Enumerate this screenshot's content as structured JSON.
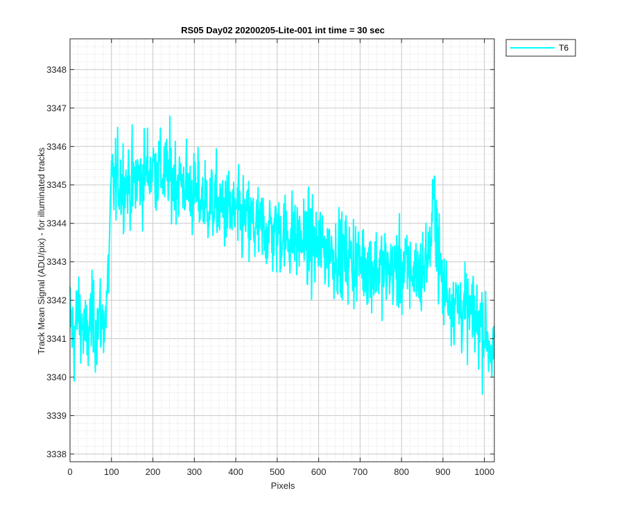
{
  "chart_data": {
    "type": "line",
    "title": "RS05 Day02 20200205-Lite-001 int time = 30 sec",
    "xlabel": "Pixels",
    "ylabel": "Track Mean Signal (ADU/pix) - for illuminated tracks",
    "xlim": [
      0,
      1024
    ],
    "ylim": [
      3337.8,
      3348.8
    ],
    "xticks": [
      0,
      100,
      200,
      300,
      400,
      500,
      600,
      700,
      800,
      900,
      1000
    ],
    "yticks": [
      3338,
      3339,
      3340,
      3341,
      3342,
      3343,
      3344,
      3345,
      3346,
      3347,
      3348
    ],
    "grid": true,
    "minor_grid": true,
    "legend_position": "outside-top-right",
    "series": [
      {
        "name": "T6",
        "color": "#00ffff",
        "envelope_note": "dense noisy trace; values sampled at key pixels",
        "x": [
          0,
          10,
          20,
          30,
          40,
          50,
          60,
          70,
          80,
          90,
          100,
          120,
          150,
          180,
          200,
          220,
          250,
          280,
          300,
          350,
          400,
          450,
          500,
          550,
          600,
          650,
          700,
          750,
          800,
          850,
          870,
          880,
          890,
          900,
          950,
          1000,
          1024
        ],
        "values": [
          3341.6,
          3341.0,
          3341.8,
          3341.3,
          3340.9,
          3341.5,
          3341.2,
          3341.6,
          3341.4,
          3342.0,
          3345.0,
          3345.1,
          3345.0,
          3345.3,
          3345.5,
          3345.3,
          3345.2,
          3345.0,
          3344.7,
          3344.5,
          3344.2,
          3343.9,
          3343.8,
          3343.6,
          3343.4,
          3343.2,
          3343.0,
          3342.8,
          3342.8,
          3342.7,
          3343.5,
          3344.8,
          3343.0,
          3342.3,
          3341.8,
          3341.3,
          3340.5
        ]
      }
    ]
  }
}
